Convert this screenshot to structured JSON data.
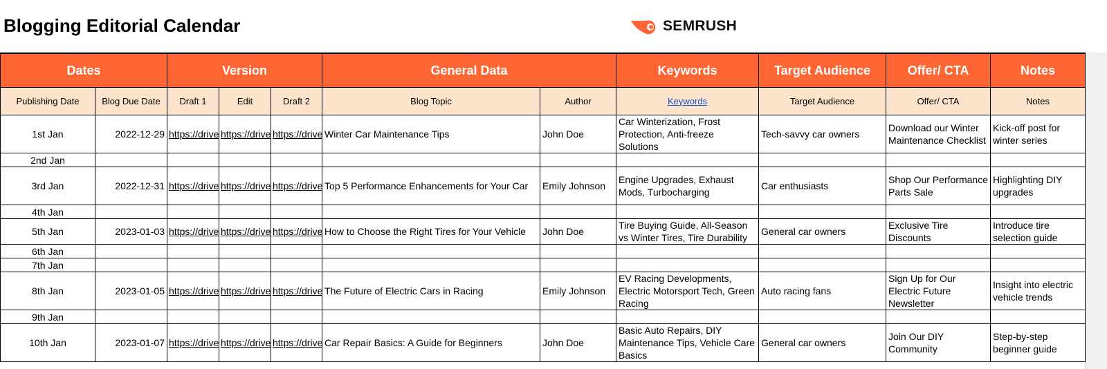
{
  "title": "Blogging Editorial Calendar",
  "logo": {
    "text": "SEMRUSH",
    "color": "#ff6633"
  },
  "colors": {
    "group_header": "#ff6633",
    "sub_header": "#fde3cc",
    "link": "#1155cc"
  },
  "groups": [
    "Dates",
    "Version",
    "General Data",
    "Keywords",
    "Target Audience",
    "Offer/ CTA",
    "Notes"
  ],
  "columns": [
    "Publishing Date",
    "Blog Due Date",
    "Draft 1",
    "Edit",
    "Draft 2",
    "Blog Topic",
    "Author",
    "Keywords",
    "Target Audience",
    "Offer/ CTA",
    "Notes"
  ],
  "rows": [
    {
      "pub": "1st Jan",
      "due": "2022-12-29",
      "d1": "https://drive",
      "edit": "https://drive",
      "d2": "https://drive",
      "topic": "Winter Car Maintenance Tips",
      "author": "John Doe",
      "keywords": "Car Winterization, Frost Protection, Anti-freeze Solutions",
      "audience": "Tech-savvy car owners",
      "cta": "Download our Winter Maintenance Checklist",
      "notes": "Kick-off post for winter series"
    },
    {
      "pub": "2nd Jan"
    },
    {
      "pub": "3rd Jan",
      "due": "2022-12-31",
      "d1": "https://drive",
      "edit": "https://drive",
      "d2": "https://drive",
      "topic": "Top 5 Performance Enhancements for Your Car",
      "author": "Emily Johnson",
      "keywords": "Engine Upgrades, Exhaust Mods, Turbocharging",
      "audience": "Car enthusiasts",
      "cta": "Shop Our Performance Parts Sale",
      "notes": "Highlighting DIY upgrades"
    },
    {
      "pub": "4th Jan"
    },
    {
      "pub": "5th Jan",
      "due": "2023-01-03",
      "d1": "https://drive",
      "edit": "https://drive",
      "d2": "https://drive",
      "topic": "How to Choose the Right Tires for Your Vehicle",
      "author": "John Doe",
      "keywords": "Tire Buying Guide, All-Season vs Winter Tires, Tire Durability",
      "audience": "General car owners",
      "cta": "Exclusive Tire Discounts",
      "notes": "Introduce tire selection guide"
    },
    {
      "pub": "6th Jan"
    },
    {
      "pub": "7th Jan"
    },
    {
      "pub": "8th Jan",
      "due": "2023-01-05",
      "d1": "https://drive",
      "edit": "https://drive",
      "d2": "https://drive",
      "topic": "The Future of Electric Cars in Racing",
      "author": "Emily Johnson",
      "keywords": "EV Racing Developments, Electric Motorsport Tech, Green Racing",
      "audience": "Auto racing fans",
      "cta": "Sign Up for Our Electric Future Newsletter",
      "notes": "Insight into electric vehicle trends"
    },
    {
      "pub": "9th Jan"
    },
    {
      "pub": "10th Jan",
      "due": "2023-01-07",
      "d1": "https://drive",
      "edit": "https://drive",
      "d2": "https://drive",
      "topic": "Car Repair Basics: A Guide for Beginners",
      "author": "John Doe",
      "keywords": "Basic Auto Repairs, DIY Maintenance Tips, Vehicle Care Basics",
      "audience": "General car owners",
      "cta": "Join Our DIY Community",
      "notes": "Step-by-step beginner guide"
    }
  ]
}
